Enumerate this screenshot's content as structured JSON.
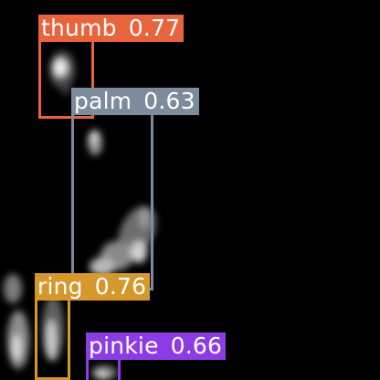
{
  "image": {
    "description_colors": {
      "background": "#000000",
      "hand_blob": "#ffffff"
    }
  },
  "detections": [
    {
      "id": "thumb",
      "label": "thumb",
      "score": "0.77",
      "color": "#e8643c"
    },
    {
      "id": "palm",
      "label": "palm",
      "score": "0.63",
      "color": "#7c8c9c"
    },
    {
      "id": "ring",
      "label": "ring",
      "score": "0.76",
      "color": "#d4982c"
    },
    {
      "id": "pinkie",
      "label": "pinkie",
      "score": "0.66",
      "color": "#8c3ce4"
    }
  ]
}
